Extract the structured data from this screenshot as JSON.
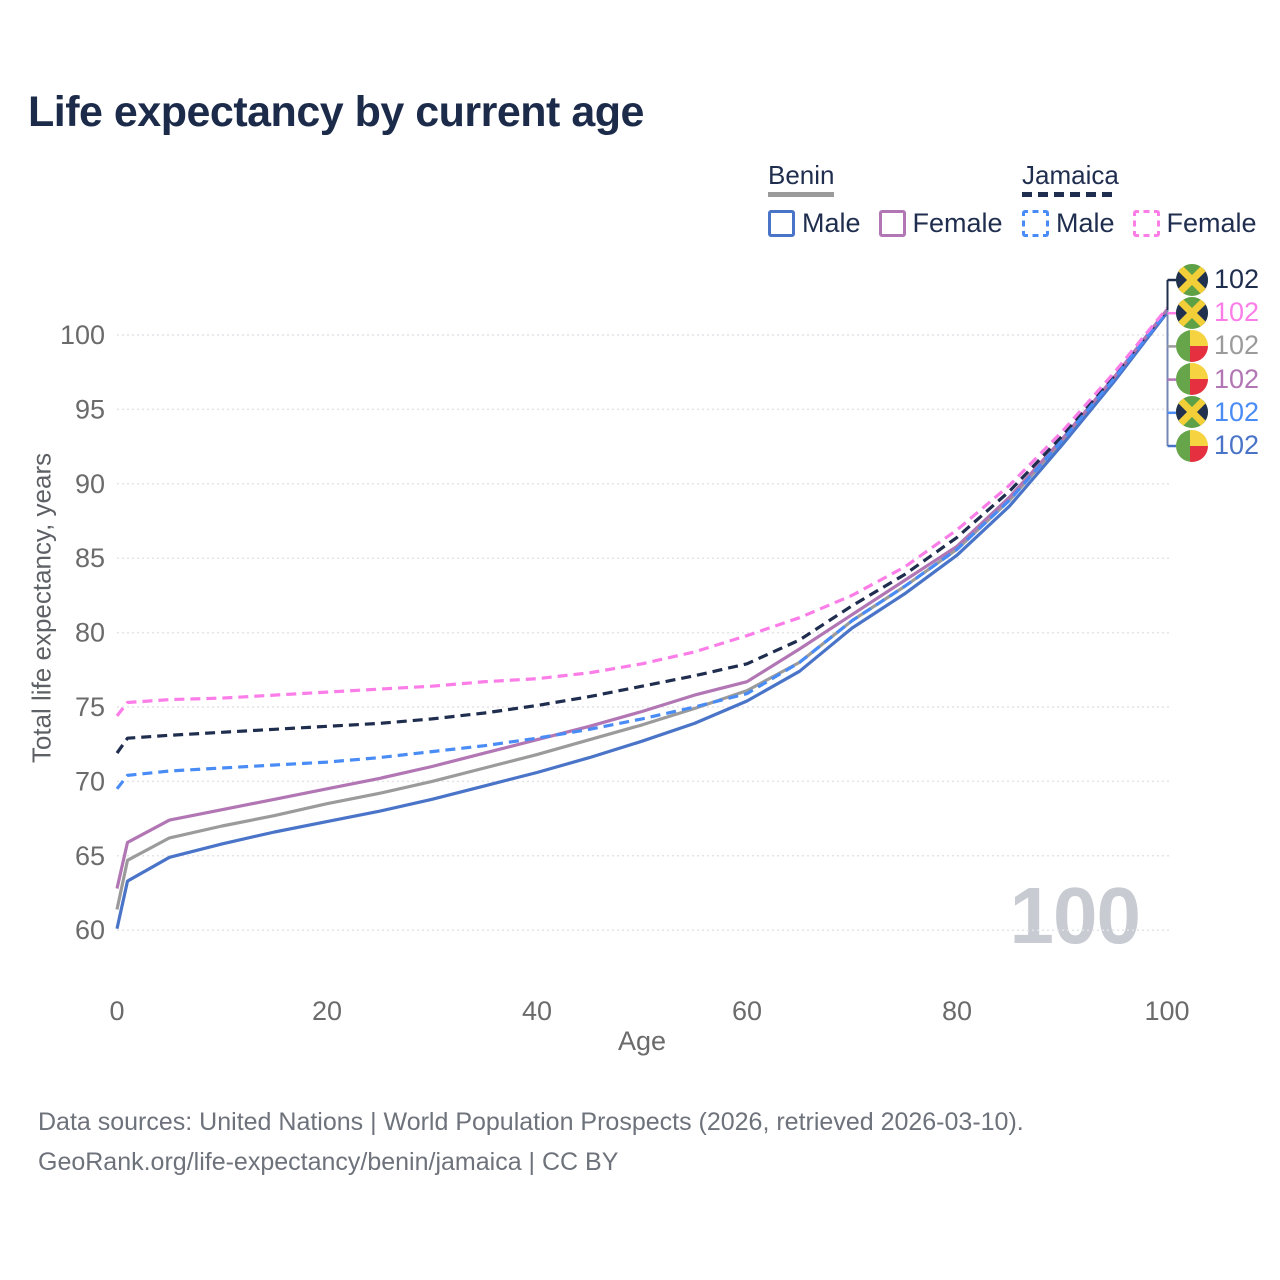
{
  "title": "Life expectancy by current age",
  "watermark": "100",
  "legend": {
    "groups": [
      {
        "name": "Benin",
        "line_color": "#9b9b9b",
        "line_dashed": false,
        "items": [
          {
            "label": "Male",
            "color": "#4a74c8",
            "dashed": false
          },
          {
            "label": "Female",
            "color": "#b176b3",
            "dashed": false
          }
        ]
      },
      {
        "name": "Jamaica",
        "line_color": "#1f2d4e",
        "line_dashed": true,
        "items": [
          {
            "label": "Male",
            "color": "#4a8cf5",
            "dashed": true
          },
          {
            "label": "Female",
            "color": "#fb7de8",
            "dashed": true
          }
        ]
      }
    ]
  },
  "flag_colors": {
    "jamaica": {
      "green": "#5da045",
      "gold": "#f2cf38",
      "black": "#20304e"
    },
    "benin": {
      "green": "#67a54b",
      "yellow": "#f6d341",
      "red": "#e5303f"
    }
  },
  "chart_data": {
    "type": "line",
    "title": "Life expectancy by current age",
    "xlabel": "Age",
    "ylabel": "Total life expectancy, years",
    "xlim": [
      0,
      100
    ],
    "ylim": [
      60,
      100
    ],
    "grid": true,
    "legend_position": "top-right",
    "x_ticks": [
      0,
      20,
      40,
      60,
      80,
      100
    ],
    "y_ticks": [
      60,
      65,
      70,
      75,
      80,
      85,
      90,
      95,
      100
    ],
    "ages": [
      0,
      1,
      5,
      10,
      15,
      20,
      25,
      30,
      35,
      40,
      45,
      50,
      55,
      60,
      65,
      70,
      75,
      80,
      85,
      90,
      95,
      100
    ],
    "series": [
      {
        "name": "Benin All",
        "country": "Benin",
        "sex": "All",
        "color": "#9b9b9b",
        "dashed": false,
        "values": [
          61.4,
          64.7,
          66.2,
          67.0,
          67.7,
          68.5,
          69.2,
          70.0,
          70.9,
          71.8,
          72.8,
          73.8,
          74.9,
          76.1,
          78.0,
          80.8,
          83.1,
          85.6,
          88.9,
          92.9,
          97.1,
          101.6
        ]
      },
      {
        "name": "Benin Male",
        "country": "Benin",
        "sex": "Male",
        "color": "#4a74c8",
        "dashed": false,
        "values": [
          60.1,
          63.3,
          64.9,
          65.8,
          66.6,
          67.3,
          68.0,
          68.8,
          69.7,
          70.6,
          71.6,
          72.7,
          73.9,
          75.4,
          77.4,
          80.3,
          82.6,
          85.2,
          88.5,
          92.6,
          96.9,
          101.5
        ]
      },
      {
        "name": "Benin Female",
        "country": "Benin",
        "sex": "Female",
        "color": "#b176b3",
        "dashed": false,
        "values": [
          62.8,
          65.9,
          67.4,
          68.1,
          68.8,
          69.5,
          70.2,
          71.0,
          71.9,
          72.8,
          73.7,
          74.7,
          75.8,
          76.7,
          78.9,
          81.2,
          83.5,
          85.8,
          89.1,
          93.0,
          97.2,
          101.7
        ]
      },
      {
        "name": "Jamaica All",
        "country": "Jamaica",
        "sex": "All",
        "color": "#1f2d4e",
        "dashed": true,
        "values": [
          71.9,
          72.9,
          73.1,
          73.3,
          73.5,
          73.7,
          73.9,
          74.2,
          74.6,
          75.1,
          75.7,
          76.4,
          77.1,
          77.9,
          79.5,
          81.8,
          83.9,
          86.4,
          89.5,
          93.2,
          97.3,
          101.7
        ]
      },
      {
        "name": "Jamaica Male",
        "country": "Jamaica",
        "sex": "Male",
        "color": "#4a8cf5",
        "dashed": true,
        "values": [
          69.5,
          70.4,
          70.7,
          70.9,
          71.1,
          71.3,
          71.6,
          72.0,
          72.4,
          72.9,
          73.5,
          74.2,
          75.0,
          75.9,
          78.0,
          80.8,
          83.1,
          85.6,
          88.9,
          92.9,
          97.1,
          101.6
        ]
      },
      {
        "name": "Jamaica Female",
        "country": "Jamaica",
        "sex": "Female",
        "color": "#fb7de8",
        "dashed": true,
        "values": [
          74.4,
          75.3,
          75.5,
          75.6,
          75.8,
          76.0,
          76.2,
          76.4,
          76.7,
          76.9,
          77.3,
          77.9,
          78.7,
          79.8,
          81.0,
          82.5,
          84.4,
          86.9,
          89.9,
          93.5,
          97.5,
          101.8
        ]
      }
    ],
    "end_labels": [
      {
        "flag": "jamaica",
        "text": "102",
        "color": "#1f2d4e"
      },
      {
        "flag": "jamaica",
        "text": "102",
        "color": "#fb7de8"
      },
      {
        "flag": "benin",
        "text": "102",
        "color": "#9b9b9b"
      },
      {
        "flag": "benin",
        "text": "102",
        "color": "#b176b3"
      },
      {
        "flag": "jamaica",
        "text": "102",
        "color": "#4a8cf5"
      },
      {
        "flag": "benin",
        "text": "102",
        "color": "#4a74c8"
      }
    ]
  },
  "footer": {
    "line1": "Data sources: United Nations | World Population Prospects (2026, retrieved 2026-03-10).",
    "line2": "GeoRank.org/life-expectancy/benin/jamaica | CC BY"
  }
}
